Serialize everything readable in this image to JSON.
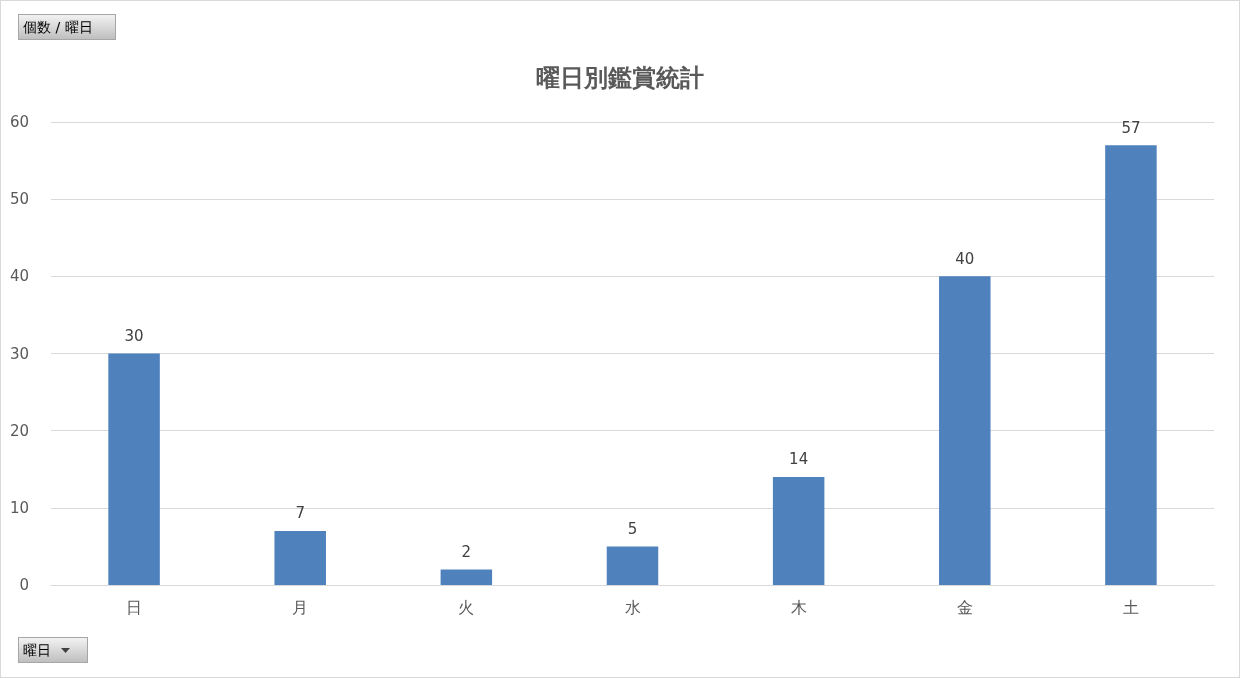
{
  "chart_data": {
    "type": "bar",
    "title": "曜日別鑑賞統計",
    "categories": [
      "日",
      "月",
      "火",
      "水",
      "木",
      "金",
      "土"
    ],
    "values": [
      30,
      7,
      2,
      5,
      14,
      40,
      57
    ],
    "color": "#4f81bd",
    "ylim": [
      0,
      60
    ],
    "yticks": [
      0,
      10,
      20,
      30,
      40,
      50,
      60
    ],
    "grid": "y",
    "data_labels": true,
    "annotations": [
      "個数 / 曜日",
      "曜日"
    ]
  }
}
